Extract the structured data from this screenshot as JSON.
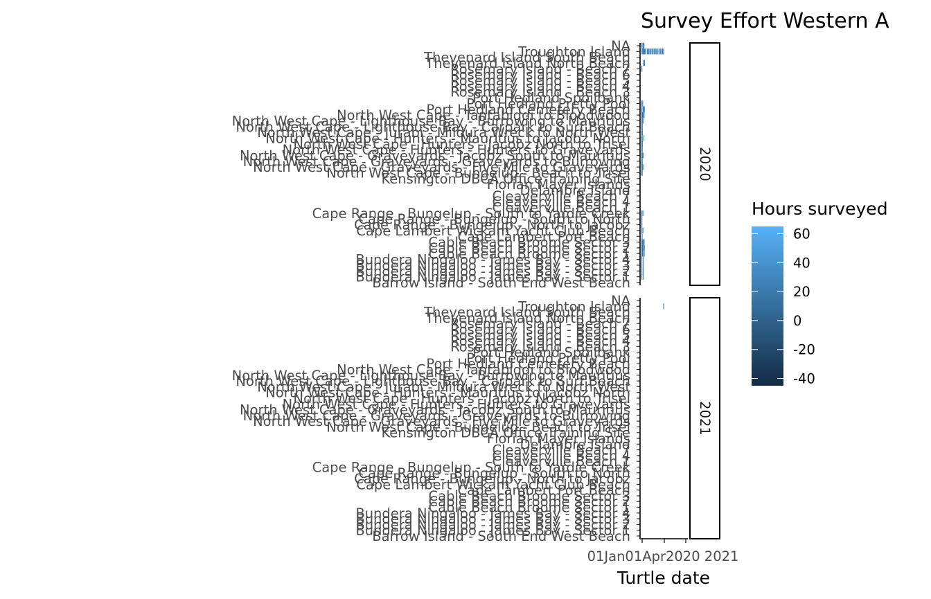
{
  "chart_data": {
    "type": "heatmap",
    "title": "Survey Effort Western A",
    "xlabel": "Turtle date",
    "ylabel": "",
    "x_tick_labels": [
      "01Jan",
      "01Apr",
      "2020",
      "2021"
    ],
    "x_tick_text": "01Jan01Apr2020 2021",
    "facets": [
      "2020",
      "2021"
    ],
    "sites": [
      "NA",
      "Troughton Island",
      "Thevenard Island South Beach",
      "Thevenard Island North Beach",
      "Rosemary Island - Beach 7",
      "Rosemary Island - Beach 6",
      "Rosemary Island - Beach 5",
      "Rosemary Island - Beach 4",
      "Rosemary Island - Beach 3",
      "Port Hedland Spoilbank",
      "Port Hedland Pretty Pool",
      "Port Hedland Cemetery Beach",
      "North West Cape - Tantabiddi to Bloodwood",
      "North West Cape - Lighthouse Bay - Burrowing to Mauritius",
      "North West Cape - Lighthouse Bay - Carpark to Surf Beach",
      "North West Cape - Jurabi - Mildura Wreck to North West",
      "North West Cape - Hunters - Mauritius to Jacobz North",
      "North West Cape - Hunters - Jacobz North to Trisel",
      "North West Cape - Hunters - Hunters to Graveyards",
      "North West Cape - Graveyards - Jacobz South to Mauritius",
      "North West Cape - Graveyards - Graveyards to Burrowing",
      "North West Cape - Graveyards - Five Mile to Graveyards",
      "North West Cape - Bungelup - Beach to Trisel",
      "Kensington DBCA Office Training Site",
      "Florian Mayer Islands",
      "Delambre Island",
      "Cleaverville Beach 7",
      "Cleaverville Beach 4",
      "Cleaverville Beach 1",
      "Cape Range - Bungelup - South to Yardie Creek",
      "Cape Range - Bungelup - South to North",
      "Cape Range - Bungelup - North to Jacobz",
      "Cape Lambert Wickam Yacht Club Beach",
      "Cape Lambert Port Beach",
      "Cable Beach Broome Sector 3",
      "Cable Beach Broome Sector 2",
      "Cable Beach Broome Sector 1",
      "Bundera Ningaloo - James Bay - Sector 4",
      "Bundera Ningaloo - James Bay - Sector 3",
      "Bundera Ningaloo - James Bay - Sector 2",
      "Bundera Ningaloo - James Bay - Sector 1",
      "Barrow Island - South End West Beach"
    ],
    "legend": {
      "title": "Hours surveyed",
      "breaks": [
        "60",
        "40",
        "20",
        "0",
        "-20",
        "-40"
      ],
      "range": [
        -45,
        65
      ],
      "color_low": "#132B43",
      "color_high": "#56B1F7"
    },
    "cells": [
      {
        "facet": "2020",
        "site": 0,
        "date": "2020-01-01",
        "days": 6,
        "hours": 18
      },
      {
        "facet": "2020",
        "site": 0,
        "date": "2020-01-10",
        "days": 2,
        "hours": 30
      },
      {
        "facet": "2020",
        "site": 0,
        "date": "2020-01-14",
        "days": 1,
        "hours": 45
      },
      {
        "facet": "2020",
        "site": 0,
        "date": "2020-01-18",
        "days": 1,
        "hours": 12
      },
      {
        "facet": "2020",
        "site": 1,
        "date": "2020-01-02",
        "days": 2,
        "hours": 20
      },
      {
        "facet": "2020",
        "site": 1,
        "date": "2020-01-09",
        "days": 1,
        "hours": 25
      },
      {
        "facet": "2020",
        "site": 1,
        "date": "2020-01-15",
        "days": 1,
        "hours": 40
      },
      {
        "facet": "2020",
        "site": 1,
        "date": "2020-01-20",
        "days": 1,
        "hours": 15
      },
      {
        "facet": "2020",
        "site": 1,
        "date": "2020-01-25",
        "days": 1,
        "hours": 30
      },
      {
        "facet": "2020",
        "site": 1,
        "date": "2020-02-03",
        "days": 1,
        "hours": 22
      },
      {
        "facet": "2020",
        "site": 1,
        "date": "2020-02-15",
        "days": 1,
        "hours": 18
      },
      {
        "facet": "2020",
        "site": 1,
        "date": "2020-02-26",
        "days": 1,
        "hours": 10
      },
      {
        "facet": "2020",
        "site": 1,
        "date": "2020-03-06",
        "days": 1,
        "hours": 35
      },
      {
        "facet": "2020",
        "site": 1,
        "date": "2020-03-14",
        "days": 1,
        "hours": 28
      },
      {
        "facet": "2020",
        "site": 1,
        "date": "2020-03-24",
        "days": 1,
        "hours": 20
      },
      {
        "facet": "2020",
        "site": 1,
        "date": "2020-04-02",
        "days": 1,
        "hours": 14
      },
      {
        "facet": "2020",
        "site": 1,
        "date": "2020-04-12",
        "days": 1,
        "hours": 25
      },
      {
        "facet": "2020",
        "site": 1,
        "date": "2020-04-22",
        "days": 1,
        "hours": 18
      },
      {
        "facet": "2020",
        "site": 1,
        "date": "2020-05-02",
        "days": 1,
        "hours": 12
      },
      {
        "facet": "2020",
        "site": 1,
        "date": "2020-05-12",
        "days": 1,
        "hours": 40
      },
      {
        "facet": "2020",
        "site": 1,
        "date": "2020-05-22",
        "days": 1,
        "hours": 30
      },
      {
        "facet": "2020",
        "site": 1,
        "date": "2020-06-01",
        "days": 1,
        "hours": 20
      },
      {
        "facet": "2020",
        "site": 1,
        "date": "2020-06-11",
        "days": 1,
        "hours": 15
      },
      {
        "facet": "2020",
        "site": 1,
        "date": "2020-06-21",
        "days": 1,
        "hours": 10
      },
      {
        "facet": "2020",
        "site": 1,
        "date": "2020-06-29",
        "days": 2,
        "hours": 50
      },
      {
        "facet": "2020",
        "site": 3,
        "date": "2020-01-12",
        "days": 1,
        "hours": 30
      },
      {
        "facet": "2020",
        "site": 3,
        "date": "2020-01-23",
        "days": 1,
        "hours": 25
      },
      {
        "facet": "2020",
        "site": 4,
        "date": "2020-01-01",
        "days": 1,
        "hours": 20
      },
      {
        "facet": "2020",
        "site": 10,
        "date": "2020-01-01",
        "days": 2,
        "hours": 25
      },
      {
        "facet": "2020",
        "site": 10,
        "date": "2020-01-08",
        "days": 1,
        "hours": 30
      },
      {
        "facet": "2020",
        "site": 11,
        "date": "2020-01-01",
        "days": 8,
        "hours": 15
      },
      {
        "facet": "2020",
        "site": 11,
        "date": "2020-01-12",
        "days": 2,
        "hours": 28
      },
      {
        "facet": "2020",
        "site": 11,
        "date": "2020-01-17",
        "days": 2,
        "hours": 22
      },
      {
        "facet": "2020",
        "site": 11,
        "date": "2020-01-22",
        "days": 1,
        "hours": 38
      },
      {
        "facet": "2020",
        "site": 12,
        "date": "2020-01-01",
        "days": 14,
        "hours": 10
      },
      {
        "facet": "2020",
        "site": 12,
        "date": "2020-01-16",
        "days": 2,
        "hours": 30
      },
      {
        "facet": "2020",
        "site": 12,
        "date": "2020-01-20",
        "days": 1,
        "hours": 45
      },
      {
        "facet": "2020",
        "site": 13,
        "date": "2020-01-01",
        "days": 11,
        "hours": 14
      },
      {
        "facet": "2020",
        "site": 14,
        "date": "2020-01-01",
        "days": 10,
        "hours": 16
      },
      {
        "facet": "2020",
        "site": 15,
        "date": "2020-01-01",
        "days": 11,
        "hours": 12
      },
      {
        "facet": "2020",
        "site": 16,
        "date": "2020-01-01",
        "days": 10,
        "hours": 14
      },
      {
        "facet": "2020",
        "site": 17,
        "date": "2020-01-01",
        "days": 11,
        "hours": 12
      },
      {
        "facet": "2020",
        "site": 18,
        "date": "2020-01-01",
        "days": 10,
        "hours": 15
      },
      {
        "facet": "2020",
        "site": 19,
        "date": "2020-01-01",
        "days": 11,
        "hours": 13
      },
      {
        "facet": "2020",
        "site": 20,
        "date": "2020-01-01",
        "days": 10,
        "hours": 14
      },
      {
        "facet": "2020",
        "site": 21,
        "date": "2020-01-01",
        "days": 11,
        "hours": 12
      },
      {
        "facet": "2020",
        "site": 22,
        "date": "2020-01-01",
        "days": 10,
        "hours": 15
      },
      {
        "facet": "2020",
        "site": 13,
        "date": "2020-01-16",
        "days": 1,
        "hours": 40
      },
      {
        "facet": "2020",
        "site": 16,
        "date": "2020-01-18",
        "days": 1,
        "hours": 35
      },
      {
        "facet": "2020",
        "site": 19,
        "date": "2020-01-15",
        "days": 1,
        "hours": 30
      },
      {
        "facet": "2020",
        "site": 21,
        "date": "2020-01-17",
        "days": 1,
        "hours": 45
      },
      {
        "facet": "2020",
        "site": 29,
        "date": "2020-01-01",
        "days": 5,
        "hours": 15
      },
      {
        "facet": "2020",
        "site": 29,
        "date": "2020-01-10",
        "days": 1,
        "hours": 30
      },
      {
        "facet": "2020",
        "site": 30,
        "date": "2020-01-01",
        "days": 7,
        "hours": 12
      },
      {
        "facet": "2020",
        "site": 31,
        "date": "2020-01-01",
        "days": 7,
        "hours": 14
      },
      {
        "facet": "2020",
        "site": 32,
        "date": "2020-01-01",
        "days": 2,
        "hours": 20
      },
      {
        "facet": "2020",
        "site": 32,
        "date": "2020-01-10",
        "days": 1,
        "hours": 30
      },
      {
        "facet": "2020",
        "site": 33,
        "date": "2020-01-03",
        "days": 1,
        "hours": 25
      },
      {
        "facet": "2020",
        "site": 34,
        "date": "2020-01-01",
        "days": 18,
        "hours": 15
      },
      {
        "facet": "2020",
        "site": 34,
        "date": "2020-01-20",
        "days": 2,
        "hours": 40
      },
      {
        "facet": "2020",
        "site": 35,
        "date": "2020-01-01",
        "days": 18,
        "hours": 12
      },
      {
        "facet": "2020",
        "site": 35,
        "date": "2020-01-22",
        "days": 1,
        "hours": 35
      },
      {
        "facet": "2020",
        "site": 36,
        "date": "2020-01-01",
        "days": 16,
        "hours": 14
      },
      {
        "facet": "2020",
        "site": 36,
        "date": "2020-01-21",
        "days": 1,
        "hours": 30
      },
      {
        "facet": "2020",
        "site": 37,
        "date": "2020-01-01",
        "days": 1,
        "hours": 20
      },
      {
        "facet": "2020",
        "site": 37,
        "date": "2020-01-12",
        "days": 1,
        "hours": 25
      },
      {
        "facet": "2020",
        "site": 38,
        "date": "2020-01-01",
        "days": 1,
        "hours": 20
      },
      {
        "facet": "2020",
        "site": 38,
        "date": "2020-01-12",
        "days": 1,
        "hours": 25
      },
      {
        "facet": "2020",
        "site": 39,
        "date": "2020-01-01",
        "days": 1,
        "hours": 18
      },
      {
        "facet": "2020",
        "site": 39,
        "date": "2020-01-12",
        "days": 1,
        "hours": 22
      },
      {
        "facet": "2020",
        "site": 40,
        "date": "2020-01-01",
        "days": 1,
        "hours": 18
      },
      {
        "facet": "2020",
        "site": 40,
        "date": "2020-01-12",
        "days": 1,
        "hours": 22
      },
      {
        "facet": "2021",
        "site": 1,
        "date": "2020-06-29",
        "days": 1,
        "hours": 20
      }
    ]
  }
}
